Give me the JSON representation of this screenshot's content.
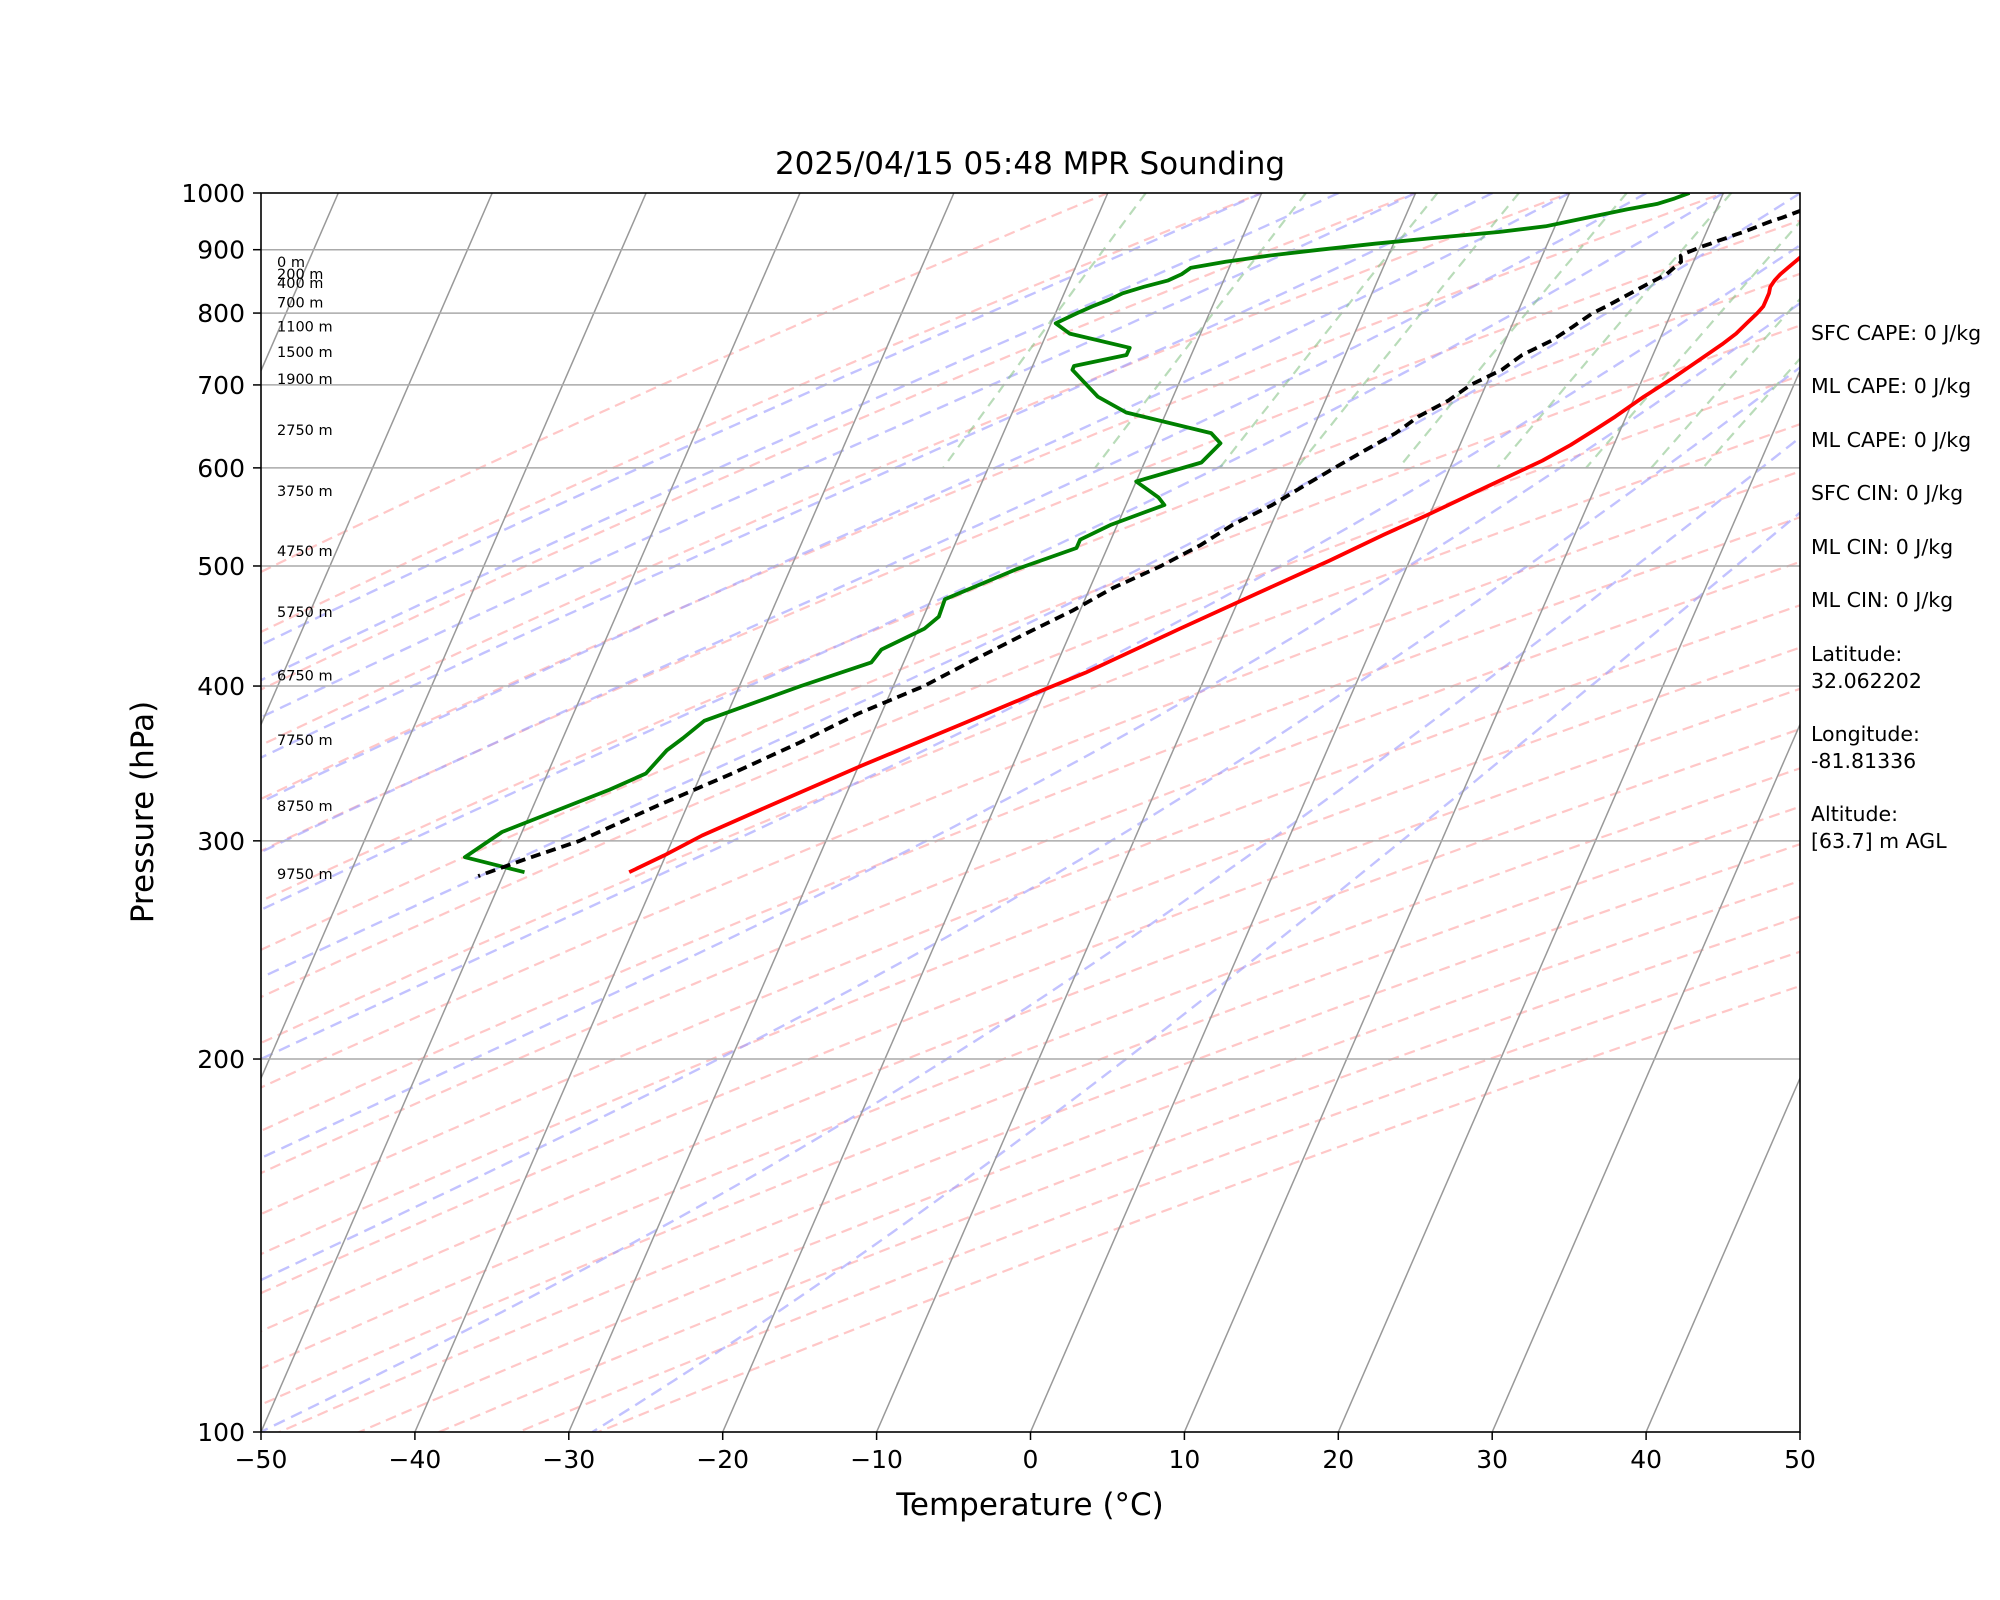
{
  "chart_data": {
    "type": "line",
    "title": "2025/04/15 05:48 MPR Sounding",
    "xlabel": "Temperature (°C)",
    "ylabel": "Pressure (hPa)",
    "xlim": [
      -50,
      50
    ],
    "ylim": [
      1000,
      100
    ],
    "y_scale": "log",
    "x_ticks": [
      "−50",
      "−40",
      "−30",
      "−20",
      "−10",
      "0",
      "10",
      "20",
      "30",
      "40",
      "50"
    ],
    "y_ticks": [
      "100",
      "200",
      "300",
      "400",
      "500",
      "600",
      "700",
      "800",
      "900",
      "1000"
    ],
    "grid": true,
    "series": [
      {
        "color": "#ff0000",
        "points": [
          [
            20.3,
            1000
          ],
          [
            20.6,
            990
          ],
          [
            20.5,
            980
          ],
          [
            20.0,
            970
          ],
          [
            19.3,
            960
          ],
          [
            18.8,
            950
          ],
          [
            18.3,
            940
          ],
          [
            17.9,
            930
          ],
          [
            17.7,
            920
          ],
          [
            17.5,
            910
          ],
          [
            17.2,
            900
          ],
          [
            16.9,
            890
          ],
          [
            16.6,
            880
          ],
          [
            16.3,
            870
          ],
          [
            16.0,
            860
          ],
          [
            15.8,
            850
          ],
          [
            15.7,
            840
          ],
          [
            15.8,
            830
          ],
          [
            15.8,
            820
          ],
          [
            15.8,
            810
          ],
          [
            15.6,
            800
          ],
          [
            15.2,
            785
          ],
          [
            14.8,
            770
          ],
          [
            14.2,
            755
          ],
          [
            13.0,
            730
          ],
          [
            12.0,
            710
          ],
          [
            10.6,
            685
          ],
          [
            9.3,
            660
          ],
          [
            8.4,
            645
          ],
          [
            7.2,
            626
          ],
          [
            5.8,
            608
          ],
          [
            3.0,
            580
          ],
          [
            -0.1,
            550
          ],
          [
            -2.4,
            530
          ],
          [
            -5.2,
            505
          ],
          [
            -9.0,
            475
          ],
          [
            -13.0,
            445
          ],
          [
            -17.9,
            410
          ],
          [
            -20.5,
            395
          ],
          [
            -24.6,
            372
          ],
          [
            -29.8,
            345
          ],
          [
            -34.7,
            320
          ],
          [
            -38.2,
            303
          ],
          [
            -40.1,
            292
          ],
          [
            -41.9,
            283
          ]
        ]
      },
      {
        "color": "#008000",
        "points": [
          [
            7.8,
            1000
          ],
          [
            7.0,
            990
          ],
          [
            6.0,
            980
          ],
          [
            4.2,
            970
          ],
          [
            2.6,
            960
          ],
          [
            1.0,
            950
          ],
          [
            -0.6,
            940
          ],
          [
            -3.5,
            930
          ],
          [
            -7.5,
            920
          ],
          [
            -11.2,
            910
          ],
          [
            -14.6,
            900
          ],
          [
            -17.8,
            890
          ],
          [
            -20.4,
            880
          ],
          [
            -22.5,
            870
          ],
          [
            -22.9,
            860
          ],
          [
            -23.6,
            850
          ],
          [
            -25.0,
            840
          ],
          [
            -26.2,
            830
          ],
          [
            -26.9,
            820
          ],
          [
            -27.8,
            810
          ],
          [
            -28.6,
            800
          ],
          [
            -29.7,
            785
          ],
          [
            -28.5,
            770
          ],
          [
            -24.2,
            750
          ],
          [
            -24.2,
            740
          ],
          [
            -27.3,
            725
          ],
          [
            -27.3,
            720
          ],
          [
            -24.9,
            685
          ],
          [
            -22.6,
            665
          ],
          [
            -16.5,
            640
          ],
          [
            -15.6,
            628
          ],
          [
            -16.3,
            606
          ],
          [
            -20.0,
            585
          ],
          [
            -18.1,
            568
          ],
          [
            -17.5,
            560
          ],
          [
            -20.4,
            540
          ],
          [
            -22.0,
            525
          ],
          [
            -22.0,
            517
          ],
          [
            -25.3,
            497
          ],
          [
            -29.1,
            470
          ],
          [
            -29.0,
            455
          ],
          [
            -29.6,
            445
          ],
          [
            -31.8,
            428
          ],
          [
            -32.1,
            418
          ],
          [
            -36.0,
            400
          ],
          [
            -41.3,
            375
          ],
          [
            -42.2,
            363
          ],
          [
            -42.9,
            355
          ],
          [
            -43.6,
            340
          ],
          [
            -45.5,
            330
          ],
          [
            -51.3,
            305
          ],
          [
            -53.0,
            291
          ],
          [
            -48.7,
            283
          ]
        ]
      },
      {
        "color": "#000000",
        "dashed": true,
        "points": [
          [
            18.0,
            1000
          ],
          [
            17.7,
            995
          ],
          [
            17.3,
            990
          ],
          [
            16.9,
            985
          ],
          [
            16.5,
            980
          ],
          [
            16.1,
            975
          ],
          [
            15.7,
            970
          ],
          [
            15.3,
            965
          ],
          [
            14.9,
            960
          ],
          [
            14.5,
            955
          ],
          [
            14.0,
            950
          ],
          [
            13.6,
            945
          ],
          [
            13.2,
            940
          ],
          [
            12.8,
            935
          ],
          [
            12.4,
            930
          ],
          [
            11.9,
            925
          ],
          [
            11.5,
            920
          ],
          [
            11.0,
            915
          ],
          [
            10.6,
            910
          ],
          [
            10.1,
            905
          ],
          [
            9.7,
            900
          ],
          [
            9.3,
            895
          ],
          [
            9.0,
            890
          ],
          [
            9.2,
            880
          ],
          [
            8.9,
            870
          ],
          [
            8.6,
            860
          ],
          [
            8.0,
            850
          ],
          [
            7.4,
            840
          ],
          [
            6.8,
            830
          ],
          [
            6.2,
            820
          ],
          [
            5.6,
            810
          ],
          [
            4.9,
            800
          ],
          [
            4.0,
            780
          ],
          [
            3.0,
            760
          ],
          [
            1.5,
            740
          ],
          [
            0.6,
            720
          ],
          [
            -1.0,
            700
          ],
          [
            -2.0,
            680
          ],
          [
            -3.5,
            660
          ],
          [
            -4.5,
            640
          ],
          [
            -6.0,
            620
          ],
          [
            -7.5,
            600
          ],
          [
            -9.0,
            580
          ],
          [
            -10.5,
            560
          ],
          [
            -12.5,
            540
          ],
          [
            -14.0,
            520
          ],
          [
            -16.0,
            500
          ],
          [
            -18.5,
            480
          ],
          [
            -20.5,
            460
          ],
          [
            -23.0,
            440
          ],
          [
            -25.5,
            420
          ],
          [
            -28.0,
            400
          ],
          [
            -31.5,
            380
          ],
          [
            -34.5,
            360
          ],
          [
            -38.0,
            340
          ],
          [
            -42.0,
            320
          ],
          [
            -46.0,
            300
          ],
          [
            -49.0,
            290
          ],
          [
            -51.6,
            281
          ]
        ]
      }
    ],
    "height_labels": [
      "9750 m",
      "8750 m",
      "7750 m",
      "6750 m",
      "5750 m",
      "4750 m",
      "3750 m",
      "2750 m",
      "1900 m",
      "1500 m",
      "1100 m",
      "700 m",
      "400 m",
      "200 m",
      "0 m"
    ],
    "height_label_pressures": [
      282,
      320,
      362,
      408,
      459,
      514,
      575,
      644,
      708,
      744,
      780,
      816,
      846,
      860,
      880
    ],
    "background_lines": {
      "isotherms": "gray solid, skewed",
      "dry_adiabats": "#ff9999 dashed",
      "moist_adiabats": "#9999ff dashed",
      "mixing_ratio": "#80c080 dashed"
    }
  },
  "info_panel": [
    "SFC CAPE: 0 J/kg",
    "ML CAPE: 0 J/kg",
    "ML CAPE: 0 J/kg",
    "SFC CIN: 0 J/kg",
    "ML CIN: 0 J/kg",
    "ML CIN: 0 J/kg",
    "Latitude:",
    "32.062202",
    "Longitude:",
    "-81.81336",
    "Altitude:",
    "[63.7] m AGL"
  ]
}
